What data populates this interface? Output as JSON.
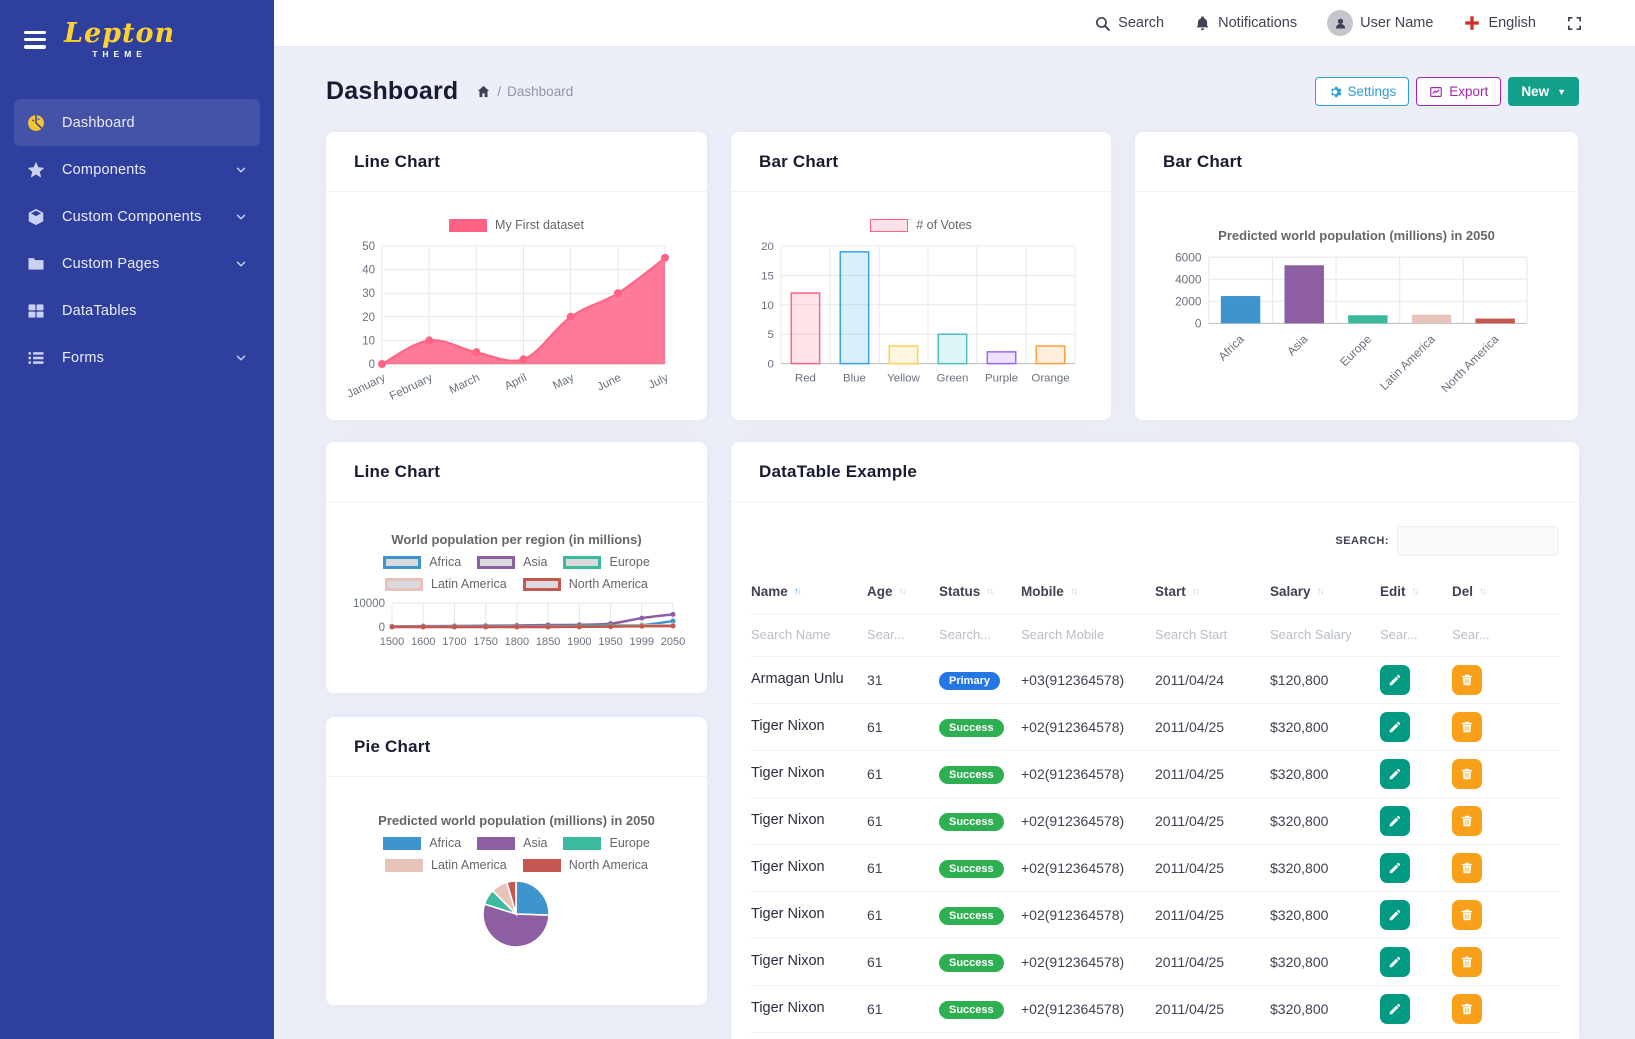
{
  "sidebar": {
    "logo": {
      "title": "Lepton",
      "subtitle": "THEME"
    },
    "items": [
      {
        "label": "Dashboard",
        "icon": "dashboard-icon",
        "active": true,
        "chevron": false
      },
      {
        "label": "Components",
        "icon": "star-icon",
        "active": false,
        "chevron": true
      },
      {
        "label": "Custom Components",
        "icon": "cube-icon",
        "active": false,
        "chevron": true
      },
      {
        "label": "Custom Pages",
        "icon": "folder-icon",
        "active": false,
        "chevron": true
      },
      {
        "label": "DataTables",
        "icon": "table-icon",
        "active": false,
        "chevron": false
      },
      {
        "label": "Forms",
        "icon": "list-icon",
        "active": false,
        "chevron": true
      }
    ]
  },
  "topbar": {
    "search": "Search",
    "notifications": "Notifications",
    "user": "User Name",
    "language": "English"
  },
  "page": {
    "title": "Dashboard",
    "breadcrumb_sep": "/",
    "breadcrumb": "Dashboard",
    "buttons": {
      "settings": "Settings",
      "export": "Export",
      "new": "New"
    }
  },
  "cards": {
    "line1_title": "Line Chart",
    "votes_title": "Bar Chart",
    "popbar_title": "Bar Chart",
    "line2_title": "Line Chart",
    "pie_title": "Pie Chart",
    "table_title": "DataTable Example"
  },
  "chart_data": {
    "line1": {
      "type": "line",
      "legend": "My First dataset",
      "color": "#ff6384",
      "categories": [
        "January",
        "February",
        "March",
        "April",
        "May",
        "June",
        "July"
      ],
      "values": [
        0,
        10,
        5,
        2,
        20,
        30,
        45
      ],
      "yticks": [
        0,
        10,
        20,
        30,
        40,
        50
      ]
    },
    "votes": {
      "type": "bar",
      "legend": "# of Votes",
      "categories": [
        "Red",
        "Blue",
        "Yellow",
        "Green",
        "Purple",
        "Orange"
      ],
      "values": [
        12,
        19,
        3,
        5,
        2,
        3
      ],
      "colors": [
        "#ff6384",
        "#36a2eb",
        "#ffce56",
        "#4bc0c0",
        "#9966ff",
        "#ff9f40"
      ],
      "yticks": [
        0,
        5,
        10,
        15,
        20
      ]
    },
    "population_bar": {
      "type": "bar",
      "title": "Predicted world population (millions) in 2050",
      "categories": [
        "Africa",
        "Asia",
        "Europe",
        "Latin America",
        "North America"
      ],
      "values": [
        2478,
        5267,
        734,
        784,
        433
      ],
      "colors": [
        "#3e95cd",
        "#8e5ea2",
        "#3cba9f",
        "#e8c3b9",
        "#c45850"
      ],
      "yticks": [
        0,
        2000,
        4000,
        6000
      ]
    },
    "population_line": {
      "type": "line",
      "title": "World population per region (in millions)",
      "categories": [
        "1500",
        "1600",
        "1700",
        "1750",
        "1800",
        "1850",
        "1900",
        "1950",
        "1999",
        "2050"
      ],
      "series": [
        {
          "name": "Africa",
          "color": "#3e95cd",
          "values": [
            86,
            114,
            106,
            106,
            107,
            111,
            133,
            221,
            783,
            2478
          ]
        },
        {
          "name": "Asia",
          "color": "#8e5ea2",
          "values": [
            282,
            350,
            411,
            502,
            635,
            809,
            947,
            1402,
            3700,
            5267
          ]
        },
        {
          "name": "Europe",
          "color": "#3cba9f",
          "values": [
            168,
            170,
            178,
            190,
            203,
            276,
            408,
            547,
            675,
            734
          ]
        },
        {
          "name": "Latin America",
          "color": "#e8c3b9",
          "values": [
            40,
            20,
            10,
            16,
            24,
            38,
            74,
            167,
            508,
            784
          ]
        },
        {
          "name": "North America",
          "color": "#c45850",
          "values": [
            6,
            3,
            2,
            2,
            7,
            26,
            82,
            172,
            312,
            433
          ]
        }
      ],
      "yticks": [
        0,
        10000
      ]
    },
    "population_pie": {
      "type": "pie",
      "title": "Predicted world population (millions) in 2050",
      "labels": [
        "Africa",
        "Asia",
        "Europe",
        "Latin America",
        "North America"
      ],
      "values": [
        2478,
        5267,
        734,
        784,
        433
      ],
      "colors": [
        "#3e95cd",
        "#8e5ea2",
        "#3cba9f",
        "#e8c3b9",
        "#c45850"
      ]
    }
  },
  "datatable": {
    "search_label": "SEARCH:",
    "columns": [
      {
        "label": "Name",
        "sorted_up": true
      },
      {
        "label": "Age",
        "sorted_up": false
      },
      {
        "label": "Status",
        "sorted_up": false
      },
      {
        "label": "Mobile",
        "sorted_up": false
      },
      {
        "label": "Start",
        "sorted_up": false
      },
      {
        "label": "Salary",
        "sorted_up": false
      },
      {
        "label": "Edit",
        "sorted_up": false
      },
      {
        "label": "Del",
        "sorted_up": false
      }
    ],
    "filters": [
      "Search Name",
      "Sear...",
      "Search...",
      "Search Mobile",
      "Search Start",
      "Search Salary",
      "Sear...",
      "Sear..."
    ],
    "rows": [
      {
        "name": "Armagan Unlu",
        "age": "31",
        "status": "Primary",
        "status_color": "#2377e4",
        "mobile": "+03(912364578)",
        "start": "2011/04/24",
        "salary": "$120,800"
      },
      {
        "name": "Tiger Nixon",
        "age": "61",
        "status": "Success",
        "status_color": "#2eb052",
        "mobile": "+02(912364578)",
        "start": "2011/04/25",
        "salary": "$320,800"
      },
      {
        "name": "Tiger Nixon",
        "age": "61",
        "status": "Success",
        "status_color": "#2eb052",
        "mobile": "+02(912364578)",
        "start": "2011/04/25",
        "salary": "$320,800"
      },
      {
        "name": "Tiger Nixon",
        "age": "61",
        "status": "Success",
        "status_color": "#2eb052",
        "mobile": "+02(912364578)",
        "start": "2011/04/25",
        "salary": "$320,800"
      },
      {
        "name": "Tiger Nixon",
        "age": "61",
        "status": "Success",
        "status_color": "#2eb052",
        "mobile": "+02(912364578)",
        "start": "2011/04/25",
        "salary": "$320,800"
      },
      {
        "name": "Tiger Nixon",
        "age": "61",
        "status": "Success",
        "status_color": "#2eb052",
        "mobile": "+02(912364578)",
        "start": "2011/04/25",
        "salary": "$320,800"
      },
      {
        "name": "Tiger Nixon",
        "age": "61",
        "status": "Success",
        "status_color": "#2eb052",
        "mobile": "+02(912364578)",
        "start": "2011/04/25",
        "salary": "$320,800"
      },
      {
        "name": "Tiger Nixon",
        "age": "61",
        "status": "Success",
        "status_color": "#2eb052",
        "mobile": "+02(912364578)",
        "start": "2011/04/25",
        "salary": "$320,800"
      }
    ]
  },
  "colors": {
    "sidebar_bg": "#2f3f9d",
    "accent_yellow": "#f5c431",
    "primary_badge": "#2377e4",
    "success_badge": "#2eb052",
    "edit_btn": "#029a82",
    "del_btn": "#f9a01b",
    "settings_btn": "#2d9cdb",
    "export_btn": "#a128ae",
    "new_btn": "#12a08b"
  }
}
